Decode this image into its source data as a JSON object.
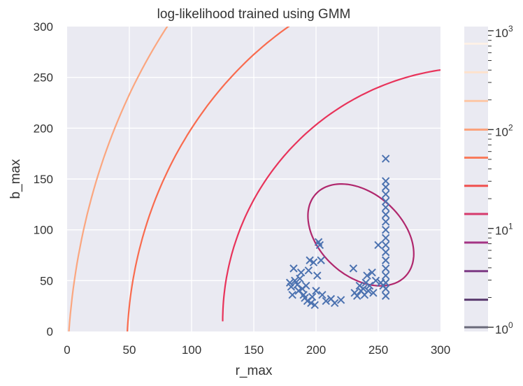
{
  "chart_data": {
    "type": "scatter",
    "title": "log-likelihood trained using GMM",
    "xlabel": "r_max",
    "ylabel": "b_max",
    "xlim": [
      0,
      300
    ],
    "ylim": [
      0,
      300
    ],
    "xticks": [
      0,
      50,
      100,
      150,
      200,
      250,
      300
    ],
    "yticks": [
      0,
      50,
      100,
      150,
      200,
      250,
      300
    ],
    "grid": true,
    "background": "#eaeaf2",
    "scatter_color": "#4c72b0",
    "marker": "x",
    "points": [
      [
        179,
        48
      ],
      [
        180,
        44
      ],
      [
        181,
        36
      ],
      [
        182,
        62
      ],
      [
        183,
        50
      ],
      [
        185,
        46
      ],
      [
        186,
        40
      ],
      [
        187,
        52
      ],
      [
        188,
        58
      ],
      [
        189,
        42
      ],
      [
        190,
        36
      ],
      [
        191,
        33
      ],
      [
        192,
        45
      ],
      [
        193,
        30
      ],
      [
        194,
        60
      ],
      [
        195,
        70
      ],
      [
        196,
        28
      ],
      [
        197,
        34
      ],
      [
        198,
        68
      ],
      [
        199,
        26
      ],
      [
        200,
        40
      ],
      [
        201,
        55
      ],
      [
        202,
        88
      ],
      [
        203,
        85
      ],
      [
        204,
        70
      ],
      [
        205,
        36
      ],
      [
        208,
        30
      ],
      [
        212,
        32
      ],
      [
        215,
        28
      ],
      [
        220,
        31
      ],
      [
        230,
        62
      ],
      [
        231,
        38
      ],
      [
        233,
        35
      ],
      [
        235,
        45
      ],
      [
        236,
        40
      ],
      [
        238,
        42
      ],
      [
        239,
        36
      ],
      [
        240,
        48
      ],
      [
        241,
        55
      ],
      [
        242,
        40
      ],
      [
        243,
        45
      ],
      [
        245,
        58
      ],
      [
        246,
        38
      ],
      [
        248,
        50
      ],
      [
        250,
        85
      ],
      [
        252,
        48
      ],
      [
        254,
        45
      ],
      [
        256,
        35
      ],
      [
        256,
        42
      ],
      [
        256,
        48
      ],
      [
        256,
        55
      ],
      [
        256,
        62
      ],
      [
        256,
        70
      ],
      [
        256,
        78
      ],
      [
        256,
        85
      ],
      [
        256,
        92
      ],
      [
        256,
        100
      ],
      [
        256,
        108
      ],
      [
        256,
        115
      ],
      [
        256,
        122
      ],
      [
        256,
        128
      ],
      [
        256,
        135
      ],
      [
        256,
        142
      ],
      [
        256,
        148
      ],
      [
        256,
        170
      ]
    ],
    "contours": [
      {
        "level": 15,
        "color": "#b0276d",
        "type": "ellipse",
        "center": [
          236,
          95
        ],
        "semi_axes": [
          36,
          55
        ],
        "angle_deg": 33
      },
      {
        "level": 30,
        "color": "#e8335a",
        "type": "arc",
        "center": [
          330,
          10
        ],
        "radii": [
          205,
          250
        ],
        "start_deg": 180,
        "end_deg": 90
      },
      {
        "level": 60,
        "color": "#f96b4e",
        "type": "arc",
        "center": [
          330,
          -20
        ],
        "radii": [
          282,
          380
        ],
        "start_deg": 180,
        "end_deg": 90
      },
      {
        "level": 120,
        "color": "#fba67f",
        "type": "arc",
        "center": [
          330,
          -50
        ],
        "radii": [
          330,
          535
        ],
        "start_deg": 180,
        "end_deg": 90
      }
    ],
    "colorbar": {
      "scale": "log",
      "range": [
        1,
        1000
      ],
      "tick_labels": [
        {
          "value": 1,
          "base": "10",
          "exp": "0"
        },
        {
          "value": 10,
          "base": "10",
          "exp": "1"
        },
        {
          "value": 100,
          "base": "10",
          "exp": "2"
        },
        {
          "value": 1000,
          "base": "10",
          "exp": "3"
        }
      ],
      "levels": [
        {
          "value": 1,
          "color": "#6a6a7a"
        },
        {
          "value": 1.9,
          "color": "#5a3a6e"
        },
        {
          "value": 3.7,
          "color": "#7d3a84"
        },
        {
          "value": 7.2,
          "color": "#a43584"
        },
        {
          "value": 14,
          "color": "#d63a6c"
        },
        {
          "value": 27,
          "color": "#f0504e"
        },
        {
          "value": 52,
          "color": "#f97b5c"
        },
        {
          "value": 100,
          "color": "#fba17a"
        },
        {
          "value": 195,
          "color": "#fcc7a7"
        },
        {
          "value": 380,
          "color": "#fde2cd"
        },
        {
          "value": 740,
          "color": "#fdf1e7"
        }
      ]
    }
  }
}
